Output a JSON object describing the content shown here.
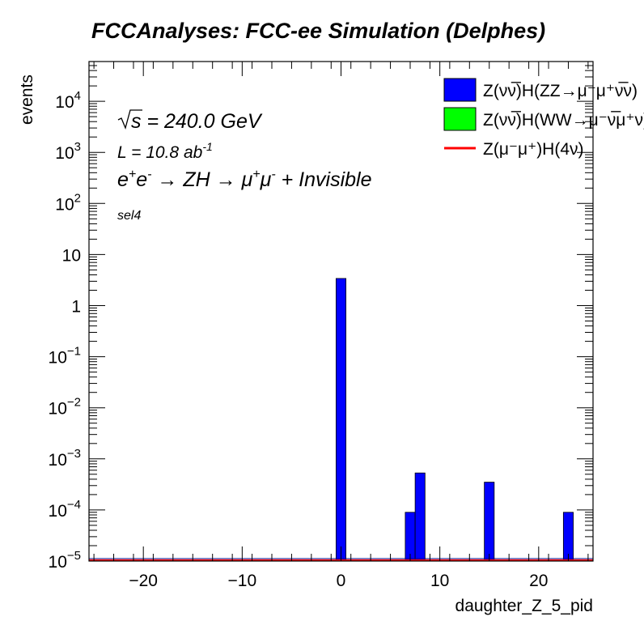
{
  "chart_data": {
    "type": "bar",
    "title": "FCCAnalyses: FCC-ee Simulation (Delphes)",
    "xlabel": "daughter_Z_5_pid",
    "ylabel": "events",
    "xlim": [
      -25.5,
      25.5
    ],
    "ylim": [
      1e-05,
      60000
    ],
    "yscale": "log",
    "bin_width": 1,
    "x_ticks": [
      -20,
      -10,
      0,
      10,
      20
    ],
    "x_tick_labels": [
      "−20",
      "−10",
      "0",
      "10",
      "20"
    ],
    "y_ticks": [
      {
        "value": 1e-05,
        "base": "10",
        "exp": "−5"
      },
      {
        "value": 0.0001,
        "base": "10",
        "exp": "−4"
      },
      {
        "value": 0.001,
        "base": "10",
        "exp": "−3"
      },
      {
        "value": 0.01,
        "base": "10",
        "exp": "−2"
      },
      {
        "value": 0.1,
        "base": "10",
        "exp": "−1"
      },
      {
        "value": 1,
        "base": "1",
        "exp": ""
      },
      {
        "value": 10,
        "base": "10",
        "exp": ""
      },
      {
        "value": 100,
        "base": "10",
        "exp": "2"
      },
      {
        "value": 1000,
        "base": "10",
        "exp": "3"
      },
      {
        "value": 10000,
        "base": "10",
        "exp": "4"
      }
    ],
    "series": [
      {
        "name": "Z(νν̅)H(ZZ→μ⁻μ⁺ν̅ν)",
        "style": "fill",
        "color": "#0000ff",
        "bins": [
          {
            "x": 0,
            "y": 3.4
          },
          {
            "x": 7,
            "y": 9e-05
          },
          {
            "x": 8,
            "y": 0.00053
          },
          {
            "x": 15,
            "y": 0.00035
          },
          {
            "x": 23,
            "y": 9e-05
          }
        ]
      },
      {
        "name": "Z(νν̅)H(WW→μ⁻ν̅μ⁺ν)",
        "style": "fill",
        "color": "#00ff00",
        "bins": []
      },
      {
        "name": "Z(μ⁻μ⁺)H(4ν)",
        "style": "line",
        "color": "#ff0000",
        "bins": []
      }
    ],
    "legend_position": "top-right",
    "annotations": {
      "sqrt_s": "s = 240.0 GeV",
      "lumi_label": "L = 10.8 ab",
      "lumi_exp": "-1",
      "process_e1": "e",
      "process_e1_sup": "+",
      "process_e2": "e",
      "process_e2_sup": "-",
      "process_arrow1": " → ZH → ",
      "process_mu1": "μ",
      "process_mu1_sup": "+",
      "process_mu2": "μ",
      "process_mu2_sup": "-",
      "process_tail": " + Invisible",
      "selection": "sel4"
    }
  }
}
